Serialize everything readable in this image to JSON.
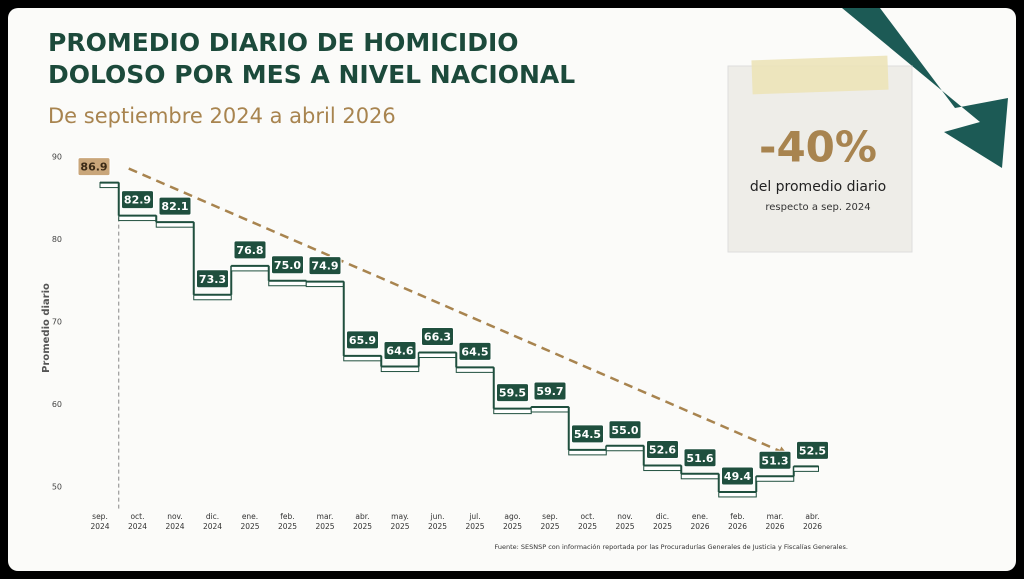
{
  "chart_data": {
    "type": "step",
    "title": [
      "PROMEDIO DIARIO DE HOMICIDIO",
      "DOLOSO POR MES A NIVEL NACIONAL"
    ],
    "subtitle": "De septiembre 2024 a abril 2026",
    "y_label": "Promedio diario",
    "categories": [
      "sep. 2024",
      "oct. 2024",
      "nov. 2024",
      "dic. 2024",
      "ene. 2025",
      "feb. 2025",
      "mar. 2025",
      "abr. 2025",
      "may. 2025",
      "jun. 2025",
      "jul. 2025",
      "ago. 2025",
      "sep. 2025",
      "oct. 2025",
      "nov. 2025",
      "dic. 2025",
      "ene. 2026",
      "feb. 2026",
      "mar. 2026",
      "abr. 2026"
    ],
    "values": [
      86.9,
      82.9,
      82.1,
      73.3,
      76.8,
      75.0,
      74.9,
      65.9,
      64.6,
      66.3,
      64.5,
      59.5,
      59.7,
      54.5,
      55.0,
      52.6,
      51.6,
      49.4,
      51.3,
      52.5
    ],
    "value_labels": [
      "86.9",
      "82.9",
      "82.1",
      "73.3",
      "76.8",
      "75.0",
      "74.9",
      "65.9",
      "64.6",
      "66.3",
      "64.5",
      "59.5",
      "59.7",
      "54.5",
      "55.0",
      "52.6",
      "51.6",
      "49.4",
      "51.3",
      "52.5"
    ],
    "color": "#1f4f3e",
    "ylim": [
      48,
      91
    ],
    "yticks": [
      50,
      60,
      70,
      80,
      90
    ],
    "callout": {
      "headline": "-40%",
      "text": "del promedio diario",
      "note": "respecto a sep. 2024"
    },
    "source": "Fuente: SESNSP con información reportada por las Procuradurías Generales de Justicia y Fiscalías Generales."
  }
}
